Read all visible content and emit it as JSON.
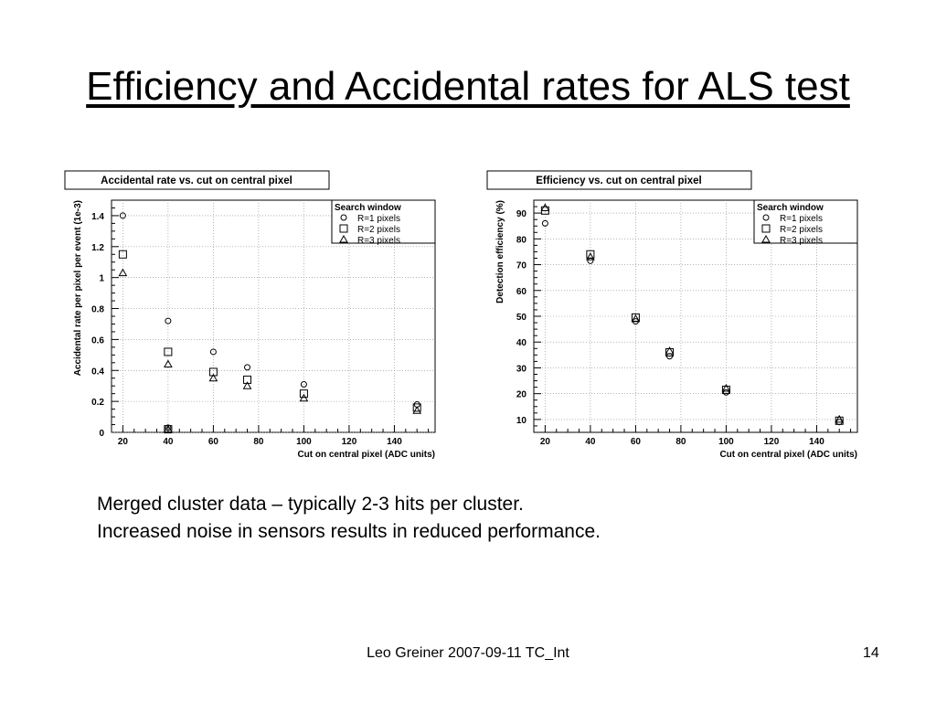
{
  "slide": {
    "title": "Efficiency and Accidental rates for ALS test",
    "bullets": [
      "Merged cluster data – typically 2-3 hits per cluster.",
      "Increased noise in sensors results in reduced performance."
    ],
    "footer": "Leo Greiner 2007-09-11 TC_Int",
    "page_number": "14"
  },
  "chart_data": [
    {
      "type": "scatter",
      "title": "Accidental rate vs. cut on central pixel",
      "xlabel": "Cut on central pixel (ADC units)",
      "ylabel": "Accidental rate per pixel per event (1e-3)",
      "xlim": [
        15,
        158
      ],
      "ylim": [
        0,
        1.5
      ],
      "xticks": [
        20,
        40,
        60,
        80,
        100,
        120,
        140
      ],
      "yticks": [
        0,
        0.2,
        0.4,
        0.6,
        0.8,
        1,
        1.2,
        1.4
      ],
      "grid": true,
      "legend": {
        "title": "Search window",
        "position": "top-right"
      },
      "series": [
        {
          "name": "R=1 pixels",
          "marker": "circle",
          "x": [
            20,
            40,
            40,
            60,
            75,
            100,
            150
          ],
          "y": [
            1.4,
            0.72,
            0.03,
            0.52,
            0.42,
            0.31,
            0.18
          ]
        },
        {
          "name": "R=2 pixels",
          "marker": "square",
          "x": [
            20,
            40,
            40,
            60,
            75,
            100,
            150
          ],
          "y": [
            1.15,
            0.52,
            0.02,
            0.39,
            0.34,
            0.25,
            0.16
          ]
        },
        {
          "name": "R=3 pixels",
          "marker": "triangle",
          "x": [
            20,
            40,
            40,
            60,
            75,
            100,
            150
          ],
          "y": [
            1.03,
            0.44,
            0.02,
            0.35,
            0.3,
            0.22,
            0.14
          ]
        }
      ]
    },
    {
      "type": "scatter",
      "title": "Efficiency vs. cut on central pixel",
      "xlabel": "Cut on central pixel (ADC units)",
      "ylabel": "Detection efficiency (%)",
      "xlim": [
        15,
        158
      ],
      "ylim": [
        5,
        95
      ],
      "xticks": [
        20,
        40,
        60,
        80,
        100,
        120,
        140
      ],
      "yticks": [
        10,
        20,
        30,
        40,
        50,
        60,
        70,
        80,
        90
      ],
      "grid": true,
      "legend": {
        "title": "Search window",
        "position": "top-right"
      },
      "series": [
        {
          "name": "R=1 pixels",
          "marker": "circle",
          "x": [
            20,
            40,
            60,
            75,
            100,
            150
          ],
          "y": [
            86,
            71.5,
            48,
            34.5,
            20.5,
            9
          ]
        },
        {
          "name": "R=2 pixels",
          "marker": "square",
          "x": [
            20,
            40,
            60,
            75,
            100,
            150
          ],
          "y": [
            91,
            74,
            49.5,
            36,
            21.5,
            9.5
          ]
        },
        {
          "name": "R=3 pixels",
          "marker": "triangle",
          "x": [
            20,
            40,
            60,
            75,
            100,
            150
          ],
          "y": [
            92,
            73,
            49,
            36.5,
            22,
            10
          ]
        }
      ]
    }
  ]
}
